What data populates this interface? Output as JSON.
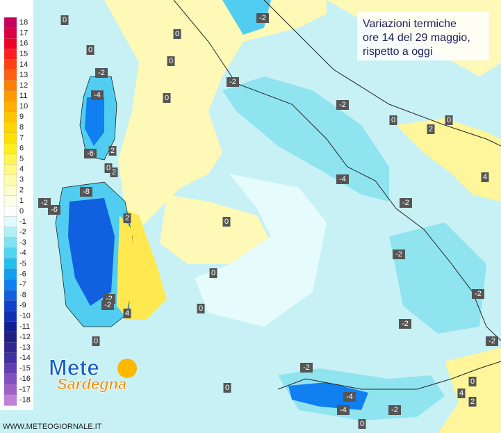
{
  "title": [
    "Variazioni termiche",
    "ore 14 del 29 maggio,",
    "rispetto a oggi"
  ],
  "legend": [
    {
      "label": "18",
      "color": "#c8005a"
    },
    {
      "label": "17",
      "color": "#dc0040"
    },
    {
      "label": "16",
      "color": "#ee0028"
    },
    {
      "label": "15",
      "color": "#ff2020"
    },
    {
      "label": "14",
      "color": "#ff4010"
    },
    {
      "label": "13",
      "color": "#ff6010"
    },
    {
      "label": "12",
      "color": "#ff8000"
    },
    {
      "label": "11",
      "color": "#ff9a00"
    },
    {
      "label": "10",
      "color": "#ffb000"
    },
    {
      "label": "9",
      "color": "#ffc400"
    },
    {
      "label": "8",
      "color": "#ffd400"
    },
    {
      "label": "7",
      "color": "#ffe200"
    },
    {
      "label": "6",
      "color": "#ffee20"
    },
    {
      "label": "5",
      "color": "#fff550"
    },
    {
      "label": "4",
      "color": "#fffa80"
    },
    {
      "label": "3",
      "color": "#fffcb0"
    },
    {
      "label": "2",
      "color": "#fffdd0"
    },
    {
      "label": "1",
      "color": "#ffffe8"
    },
    {
      "label": "0",
      "color": "#ffffff"
    },
    {
      "label": "-1",
      "color": "#e0fbfb"
    },
    {
      "label": "-2",
      "color": "#b0f0f5"
    },
    {
      "label": "-3",
      "color": "#80e4f0"
    },
    {
      "label": "-4",
      "color": "#50d4f0"
    },
    {
      "label": "-5",
      "color": "#20bff0"
    },
    {
      "label": "-6",
      "color": "#10a0f0"
    },
    {
      "label": "-7",
      "color": "#1080f0"
    },
    {
      "label": "-8",
      "color": "#1060e0"
    },
    {
      "label": "-9",
      "color": "#1040d0"
    },
    {
      "label": "-10",
      "color": "#1030b0"
    },
    {
      "label": "-11",
      "color": "#102090"
    },
    {
      "label": "-12",
      "color": "#202080"
    },
    {
      "label": "-13",
      "color": "#302890"
    },
    {
      "label": "-14",
      "color": "#4030a0"
    },
    {
      "label": "-15",
      "color": "#6040b0"
    },
    {
      "label": "-16",
      "color": "#8050c0"
    },
    {
      "label": "-17",
      "color": "#a060c8"
    },
    {
      "label": "-18",
      "color": "#c080d8"
    }
  ],
  "map_labels": [
    "0",
    "0",
    "-2",
    "0",
    "0",
    "-2",
    "-2",
    "-4",
    "0",
    "-2",
    "0",
    "0",
    "2",
    "-6",
    "2",
    "0",
    "2",
    "-4",
    "4",
    "-8",
    "-2",
    "-6",
    "-2",
    "2",
    "0",
    "-2",
    "0",
    "-2",
    "-2",
    "-2",
    "0",
    "4",
    "-2",
    "0",
    "-2",
    "-2",
    "0",
    "0",
    "4",
    "-4",
    "2",
    "-2",
    "-4",
    "0"
  ],
  "logo": [
    "Mete",
    "Sardegna"
  ],
  "source": "WWW.METEOGIORNALE.IT"
}
